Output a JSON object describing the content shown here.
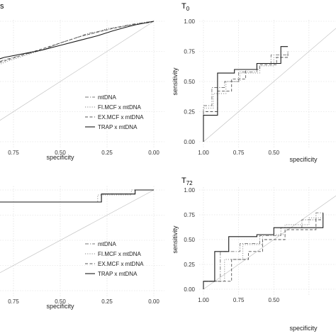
{
  "chart_data": [
    {
      "type": "line",
      "title": "s",
      "title_sub": "",
      "xlabel": "specificity",
      "ylabel": "",
      "x_reversed": true,
      "xlim": [
        0,
        1
      ],
      "ylim": [
        0,
        1
      ],
      "x_ticks": [
        "0.75",
        "0.50",
        "0.25",
        "0.00"
      ],
      "y_ticks": [],
      "grid": true,
      "legend": [
        "mtDNA",
        "FI.MCF x mtDNA",
        "EX.MCF x mtDNA",
        "TRAP x mtDNA"
      ],
      "series": [
        {
          "name": "mtDNA",
          "style": "dotdash",
          "points": [
            [
              1.0,
              0.55
            ],
            [
              0.92,
              0.6
            ],
            [
              0.85,
              0.65
            ],
            [
              0.8,
              0.68
            ],
            [
              0.7,
              0.72
            ],
            [
              0.6,
              0.76
            ],
            [
              0.5,
              0.82
            ],
            [
              0.42,
              0.86
            ],
            [
              0.35,
              0.9
            ],
            [
              0.28,
              0.92
            ],
            [
              0.2,
              0.95
            ],
            [
              0.1,
              0.98
            ],
            [
              0.0,
              1.0
            ]
          ]
        },
        {
          "name": "FI.MCF x mtDNA",
          "style": "dotted",
          "points": [
            [
              1.0,
              0.5
            ],
            [
              0.93,
              0.55
            ],
            [
              0.86,
              0.62
            ],
            [
              0.78,
              0.67
            ],
            [
              0.68,
              0.72
            ],
            [
              0.58,
              0.77
            ],
            [
              0.48,
              0.83
            ],
            [
              0.4,
              0.87
            ],
            [
              0.32,
              0.9
            ],
            [
              0.25,
              0.94
            ],
            [
              0.15,
              0.96
            ],
            [
              0.05,
              0.99
            ],
            [
              0.0,
              1.0
            ]
          ]
        },
        {
          "name": "EX.MCF x mtDNA",
          "style": "dashed",
          "points": [
            [
              1.0,
              0.52
            ],
            [
              0.9,
              0.6
            ],
            [
              0.82,
              0.66
            ],
            [
              0.74,
              0.7
            ],
            [
              0.66,
              0.74
            ],
            [
              0.56,
              0.79
            ],
            [
              0.46,
              0.84
            ],
            [
              0.38,
              0.88
            ],
            [
              0.3,
              0.91
            ],
            [
              0.22,
              0.94
            ],
            [
              0.12,
              0.97
            ],
            [
              0.02,
              0.99
            ],
            [
              0.0,
              1.0
            ]
          ]
        },
        {
          "name": "TRAP x mtDNA",
          "style": "solid",
          "points": [
            [
              1.0,
              0.58
            ],
            [
              0.95,
              0.62
            ],
            [
              0.88,
              0.66
            ],
            [
              0.8,
              0.7
            ],
            [
              0.7,
              0.73
            ],
            [
              0.6,
              0.76
            ],
            [
              0.5,
              0.8
            ],
            [
              0.4,
              0.84
            ],
            [
              0.3,
              0.88
            ],
            [
              0.22,
              0.92
            ],
            [
              0.15,
              0.95
            ],
            [
              0.1,
              0.97
            ],
            [
              0.0,
              1.0
            ]
          ]
        }
      ]
    },
    {
      "type": "line",
      "title": "T",
      "title_sub": "0",
      "xlabel": "specificity",
      "ylabel": "sensitivity",
      "x_reversed": true,
      "xlim": [
        0,
        1
      ],
      "ylim": [
        0,
        1
      ],
      "x_ticks": [
        "1.00",
        "0.75",
        "0.50"
      ],
      "y_ticks": [
        "0.00",
        "0.25",
        "0.50",
        "0.75",
        "1.00"
      ],
      "grid": true,
      "legend": [],
      "series": [
        {
          "name": "mtDNA",
          "style": "dotdash",
          "points": [
            [
              1.0,
              0.0
            ],
            [
              1.0,
              0.3
            ],
            [
              0.94,
              0.3
            ],
            [
              0.94,
              0.45
            ],
            [
              0.85,
              0.45
            ],
            [
              0.85,
              0.5
            ],
            [
              0.75,
              0.5
            ],
            [
              0.75,
              0.58
            ],
            [
              0.62,
              0.58
            ],
            [
              0.62,
              0.65
            ],
            [
              0.52,
              0.65
            ],
            [
              0.52,
              0.72
            ],
            [
              0.4,
              0.72
            ],
            [
              0.4,
              0.75
            ]
          ]
        },
        {
          "name": "FI.MCF x mtDNA",
          "style": "dotted",
          "points": [
            [
              1.0,
              0.0
            ],
            [
              1.0,
              0.28
            ],
            [
              0.93,
              0.28
            ],
            [
              0.93,
              0.4
            ],
            [
              0.84,
              0.4
            ],
            [
              0.84,
              0.5
            ],
            [
              0.74,
              0.5
            ],
            [
              0.74,
              0.57
            ],
            [
              0.6,
              0.57
            ],
            [
              0.6,
              0.63
            ],
            [
              0.5,
              0.63
            ],
            [
              0.5,
              0.7
            ],
            [
              0.4,
              0.7
            ],
            [
              0.4,
              0.74
            ]
          ]
        },
        {
          "name": "EX.MCF x mtDNA",
          "style": "dashed",
          "points": [
            [
              1.0,
              0.0
            ],
            [
              1.0,
              0.25
            ],
            [
              0.9,
              0.25
            ],
            [
              0.9,
              0.42
            ],
            [
              0.8,
              0.42
            ],
            [
              0.8,
              0.52
            ],
            [
              0.7,
              0.52
            ],
            [
              0.7,
              0.6
            ],
            [
              0.6,
              0.6
            ],
            [
              0.6,
              0.64
            ],
            [
              0.48,
              0.64
            ],
            [
              0.48,
              0.7
            ],
            [
              0.4,
              0.7
            ],
            [
              0.4,
              0.73
            ]
          ]
        },
        {
          "name": "TRAP x mtDNA",
          "style": "solid",
          "points": [
            [
              1.0,
              0.0
            ],
            [
              1.0,
              0.22
            ],
            [
              0.9,
              0.22
            ],
            [
              0.9,
              0.57
            ],
            [
              0.78,
              0.57
            ],
            [
              0.78,
              0.6
            ],
            [
              0.62,
              0.6
            ],
            [
              0.62,
              0.65
            ],
            [
              0.45,
              0.65
            ],
            [
              0.45,
              0.79
            ],
            [
              0.4,
              0.79
            ]
          ]
        }
      ]
    },
    {
      "type": "line",
      "title": "",
      "title_sub": "",
      "xlabel": "specificity",
      "ylabel": "",
      "x_reversed": true,
      "xlim": [
        0,
        1
      ],
      "ylim": [
        0,
        1
      ],
      "x_ticks": [
        "0.75",
        "0.50",
        "0.25",
        "0.00"
      ],
      "y_ticks": [],
      "grid": true,
      "legend": [
        "mtDNA",
        "FI.MCF x mtDNA",
        "EX.MCF x mtDNA",
        "TRAP x mtDNA"
      ],
      "series": [
        {
          "name": "mtDNA",
          "style": "dotdash",
          "points": [
            [
              1.0,
              0.88
            ],
            [
              0.28,
              0.88
            ],
            [
              0.28,
              0.96
            ],
            [
              0.1,
              0.96
            ],
            [
              0.1,
              1.0
            ],
            [
              0.0,
              1.0
            ]
          ]
        },
        {
          "name": "FI.MCF x mtDNA",
          "style": "dotted",
          "points": [
            [
              1.0,
              0.88
            ],
            [
              0.3,
              0.88
            ],
            [
              0.3,
              0.95
            ],
            [
              0.12,
              0.95
            ],
            [
              0.12,
              1.0
            ],
            [
              0.0,
              1.0
            ]
          ]
        },
        {
          "name": "EX.MCF x mtDNA",
          "style": "dashed",
          "points": [
            [
              1.0,
              0.88
            ],
            [
              0.28,
              0.88
            ],
            [
              0.28,
              0.96
            ],
            [
              0.1,
              0.96
            ],
            [
              0.1,
              1.0
            ],
            [
              0.0,
              1.0
            ]
          ]
        },
        {
          "name": "TRAP x mtDNA",
          "style": "solid",
          "points": [
            [
              1.0,
              0.88
            ],
            [
              0.28,
              0.88
            ],
            [
              0.28,
              0.96
            ],
            [
              0.1,
              0.96
            ],
            [
              0.1,
              1.0
            ],
            [
              0.0,
              1.0
            ]
          ]
        }
      ]
    },
    {
      "type": "line",
      "title": "T",
      "title_sub": "72",
      "xlabel": "specificity",
      "ylabel": "sensitivity",
      "x_reversed": true,
      "xlim": [
        0,
        1
      ],
      "ylim": [
        0,
        1
      ],
      "x_ticks": [
        "1.00",
        "0.75",
        "0.50"
      ],
      "y_ticks": [
        "0.00",
        "0.25",
        "0.50",
        "0.75",
        "1.00"
      ],
      "grid": true,
      "legend": [],
      "series": [
        {
          "name": "mtDNA",
          "style": "dotdash",
          "points": [
            [
              1.0,
              0.0
            ],
            [
              1.0,
              0.08
            ],
            [
              0.88,
              0.08
            ],
            [
              0.88,
              0.38
            ],
            [
              0.74,
              0.38
            ],
            [
              0.74,
              0.46
            ],
            [
              0.6,
              0.46
            ],
            [
              0.6,
              0.54
            ],
            [
              0.45,
              0.54
            ],
            [
              0.45,
              0.62
            ],
            [
              0.3,
              0.62
            ],
            [
              0.3,
              0.7
            ],
            [
              0.2,
              0.7
            ],
            [
              0.2,
              0.77
            ],
            [
              0.15,
              0.77
            ]
          ]
        },
        {
          "name": "FI.MCF x mtDNA",
          "style": "dotted",
          "points": [
            [
              1.0,
              0.0
            ],
            [
              1.0,
              0.08
            ],
            [
              0.85,
              0.08
            ],
            [
              0.85,
              0.3
            ],
            [
              0.72,
              0.3
            ],
            [
              0.72,
              0.45
            ],
            [
              0.58,
              0.45
            ],
            [
              0.58,
              0.55
            ],
            [
              0.42,
              0.55
            ],
            [
              0.42,
              0.65
            ],
            [
              0.25,
              0.65
            ],
            [
              0.25,
              0.72
            ],
            [
              0.15,
              0.72
            ]
          ]
        },
        {
          "name": "EX.MCF x mtDNA",
          "style": "dashed",
          "points": [
            [
              1.0,
              0.0
            ],
            [
              1.0,
              0.08
            ],
            [
              0.8,
              0.08
            ],
            [
              0.8,
              0.3
            ],
            [
              0.68,
              0.3
            ],
            [
              0.68,
              0.38
            ],
            [
              0.58,
              0.38
            ],
            [
              0.58,
              0.5
            ],
            [
              0.42,
              0.5
            ],
            [
              0.42,
              0.6
            ],
            [
              0.2,
              0.6
            ],
            [
              0.2,
              0.7
            ],
            [
              0.15,
              0.7
            ]
          ]
        },
        {
          "name": "TRAP x mtDNA",
          "style": "solid",
          "points": [
            [
              1.0,
              0.0
            ],
            [
              1.0,
              0.08
            ],
            [
              0.92,
              0.08
            ],
            [
              0.92,
              0.38
            ],
            [
              0.82,
              0.38
            ],
            [
              0.82,
              0.53
            ],
            [
              0.62,
              0.53
            ],
            [
              0.62,
              0.55
            ],
            [
              0.5,
              0.55
            ],
            [
              0.5,
              0.62
            ],
            [
              0.35,
              0.62
            ],
            [
              0.35,
              0.62
            ],
            [
              0.15,
              0.62
            ],
            [
              0.15,
              0.77
            ]
          ]
        }
      ]
    }
  ]
}
